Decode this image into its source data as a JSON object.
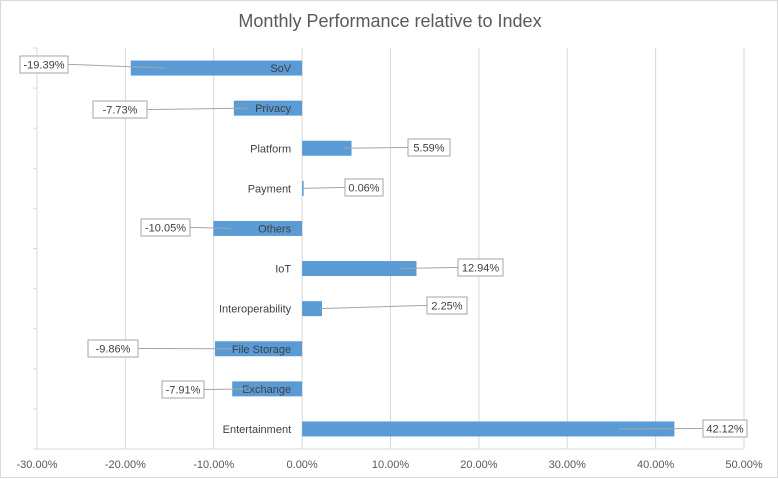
{
  "chart_data": {
    "type": "bar",
    "orientation": "horizontal",
    "title": "Monthly Performance relative to Index",
    "categories": [
      "SoV",
      "Privacy",
      "Platform",
      "Payment",
      "Others",
      "IoT",
      "Interoperability",
      "File Storage",
      "Exchange",
      "Entertainment"
    ],
    "values": [
      -19.39,
      -7.73,
      5.59,
      0.06,
      -10.05,
      12.94,
      2.25,
      -9.86,
      -7.91,
      42.12
    ],
    "data_labels": [
      "-19.39%",
      "-7.73%",
      "5.59%",
      "0.06%",
      "-10.05%",
      "12.94%",
      "2.25%",
      "-9.86%",
      "-7.91%",
      "42.12%"
    ],
    "xlim": [
      -30,
      50
    ],
    "x_ticks": [
      -30,
      -20,
      -10,
      0,
      10,
      20,
      30,
      40,
      50
    ],
    "x_tick_labels": [
      "-30.00%",
      "-20.00%",
      "-10.00%",
      "0.00%",
      "10.00%",
      "20.00%",
      "30.00%",
      "40.00%",
      "50.00%"
    ],
    "grid": "vertical",
    "bar_color": "#5b9bd5",
    "grid_color": "#d9d9d9",
    "xlabel": "",
    "ylabel": ""
  }
}
